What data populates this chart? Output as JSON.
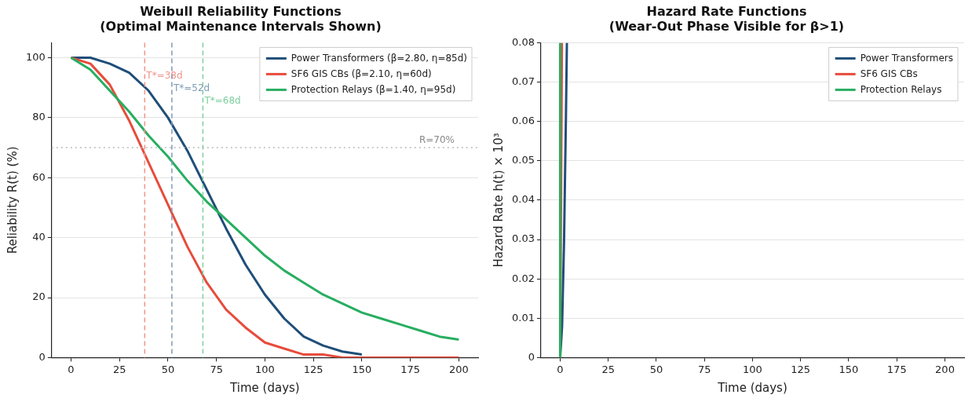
{
  "chart_data": [
    {
      "type": "line",
      "title": "Weibull Reliability Functions\n(Optimal Maintenance Intervals Shown)",
      "xlabel": "Time (days)",
      "ylabel": "Reliability R(t) (%)",
      "x": [
        0,
        10,
        20,
        30,
        40,
        50,
        60,
        70,
        80,
        90,
        100,
        110,
        120,
        130,
        140,
        150,
        160,
        170,
        180,
        190,
        200
      ],
      "series": [
        {
          "name": "Power Transformers (β=2.80, η=85d)",
          "color": "#1f4e79",
          "values": [
            100,
            100,
            98,
            95,
            89,
            80,
            69,
            56,
            43,
            31,
            21,
            13,
            7,
            4,
            2,
            1,
            null,
            null,
            null,
            null,
            null
          ]
        },
        {
          "name": "SF6 GIS CBs (β=2.10, η=60d)",
          "color": "#e74c3c",
          "values": [
            100,
            98,
            91,
            79,
            65,
            51,
            37,
            25,
            16,
            10,
            5,
            3,
            1,
            1,
            0,
            0,
            0,
            0,
            0,
            0,
            0
          ]
        },
        {
          "name": "Protection Relays (β=1.40, η=95d)",
          "color": "#27ae60",
          "values": [
            100,
            96,
            89,
            82,
            74,
            67,
            59,
            52,
            46,
            40,
            34,
            29,
            25,
            21,
            18,
            15,
            13,
            11,
            9,
            7,
            6
          ]
        }
      ],
      "ref_lines": [
        {
          "axis": "x",
          "value": 38,
          "label": "T*=38d",
          "color": "#f1948a",
          "line_style": "dashed"
        },
        {
          "axis": "x",
          "value": 52,
          "label": "T*=52d",
          "color": "#7f9bb5",
          "line_style": "dashed"
        },
        {
          "axis": "x",
          "value": 68,
          "label": "T*=68d",
          "color": "#7dcf9e",
          "line_style": "dashed"
        },
        {
          "axis": "y",
          "value": 70,
          "label": "R=70%",
          "color": "#bbbbbb",
          "line_style": "dotted"
        }
      ],
      "xlim": [
        -10,
        210
      ],
      "xticks": [
        0,
        25,
        50,
        75,
        100,
        125,
        150,
        175,
        200
      ],
      "ylim": [
        0,
        105
      ],
      "yticks": [
        0,
        20,
        40,
        60,
        80,
        100
      ],
      "grid": "y",
      "legend": "top right",
      "marker": "none",
      "line_style": "solid"
    },
    {
      "type": "line",
      "title": "Hazard Rate Functions\n(Wear-Out Phase Visible for β>1)",
      "xlabel": "Time (days)",
      "ylabel": "Hazard Rate h(t) × 10³",
      "series": [
        {
          "name": "Power Transformers",
          "color": "#1f4e79",
          "x": [
            0,
            1,
            2,
            3,
            3.5
          ],
          "values": [
            0,
            0.008,
            0.029,
            0.061,
            0.08
          ]
        },
        {
          "name": "SF6 GIS CBs",
          "color": "#e74c3c",
          "x": [
            0,
            0.9
          ],
          "values": [
            0,
            0.08
          ]
        },
        {
          "name": "Protection Relays",
          "color": "#27ae60",
          "x": [
            0,
            0
          ],
          "values": [
            0,
            0.08
          ]
        }
      ],
      "xlim": [
        -10,
        210
      ],
      "xticks": [
        0,
        25,
        50,
        75,
        100,
        125,
        150,
        175,
        200
      ],
      "ylim": [
        0,
        0.08
      ],
      "yticks": [
        0,
        0.01,
        0.02,
        0.03,
        0.04,
        0.05,
        0.06,
        0.07,
        0.08
      ],
      "grid": "y",
      "legend": "top right",
      "marker": "none",
      "line_style": "solid"
    }
  ]
}
